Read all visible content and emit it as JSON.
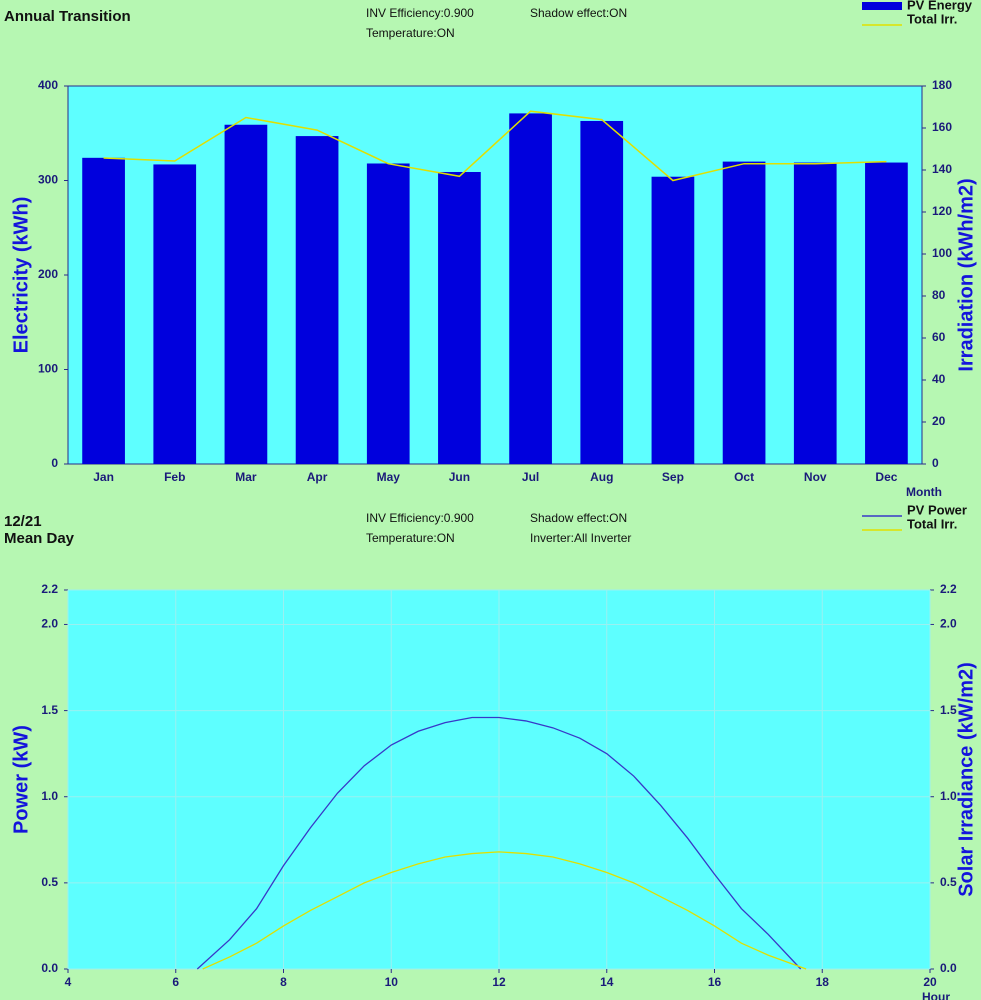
{
  "chart_data": [
    {
      "type": "bar",
      "title": "Annual Transition",
      "annotations": [
        "INV Efficiency:0.900",
        "Shadow effect:ON",
        "Temperature:ON"
      ],
      "xlabel": "Month",
      "ylabel": "Electricity (kWh)",
      "y2label": "Irradiation (kWh/m2)",
      "categories": [
        "Jan",
        "Feb",
        "Mar",
        "Apr",
        "May",
        "Jun",
        "Jul",
        "Aug",
        "Sep",
        "Oct",
        "Nov",
        "Dec"
      ],
      "series": [
        {
          "name": "PV Energy",
          "type": "bar",
          "color": "#0000dd",
          "values": [
            324,
            317,
            359,
            347,
            318,
            309,
            371,
            363,
            304,
            320,
            319,
            319
          ]
        },
        {
          "name": "Total Irr.",
          "type": "line",
          "axis": "y2",
          "color": "#e0e000",
          "values": [
            145.7,
            144.3,
            165,
            159,
            143,
            137,
            168,
            164,
            135,
            143,
            143,
            144
          ]
        }
      ],
      "ylim": [
        0,
        400
      ],
      "yticks": [
        0,
        100,
        200,
        300,
        400
      ],
      "y2lim": [
        0,
        180
      ],
      "y2ticks": [
        0,
        20,
        40,
        60,
        80,
        100,
        120,
        140,
        160,
        180
      ],
      "grid": false
    },
    {
      "type": "line",
      "date": "12/21",
      "title": "Mean Day",
      "annotations": [
        "INV Efficiency:0.900",
        "Shadow effect:ON",
        "Temperature:ON",
        "Inverter:All Inverter"
      ],
      "xlabel": "Hour",
      "ylabel": "Power (kW)",
      "y2label": "Solar Irradiance (kW/m2)",
      "series": [
        {
          "name": "PV Power",
          "color": "#3838c8",
          "x": [
            6.4,
            7,
            7.5,
            8,
            8.5,
            9,
            9.5,
            10,
            10.5,
            11,
            11.5,
            12,
            12.5,
            13,
            13.5,
            14,
            14.5,
            15,
            15.5,
            16,
            16.5,
            17,
            17.6
          ],
          "values": [
            0,
            0.17,
            0.35,
            0.6,
            0.82,
            1.02,
            1.18,
            1.3,
            1.38,
            1.43,
            1.46,
            1.46,
            1.44,
            1.4,
            1.34,
            1.25,
            1.12,
            0.95,
            0.76,
            0.55,
            0.35,
            0.2,
            0
          ]
        },
        {
          "name": "Total Irr.",
          "axis": "y2",
          "color": "#e0e000",
          "x": [
            6.5,
            7,
            7.5,
            8,
            8.5,
            9,
            9.5,
            10,
            10.5,
            11,
            11.5,
            12,
            12.5,
            13,
            13.5,
            14,
            14.5,
            15,
            15.5,
            16,
            16.5,
            17,
            17.7
          ],
          "values": [
            0,
            0.07,
            0.15,
            0.25,
            0.34,
            0.42,
            0.5,
            0.56,
            0.61,
            0.65,
            0.67,
            0.68,
            0.67,
            0.65,
            0.61,
            0.56,
            0.5,
            0.42,
            0.34,
            0.25,
            0.15,
            0.08,
            0
          ]
        }
      ],
      "xlim": [
        4,
        20
      ],
      "xticks": [
        4,
        6,
        8,
        10,
        12,
        14,
        16,
        18,
        20
      ],
      "ylim": [
        0,
        2.2
      ],
      "yticks": [
        {
          "value": 0,
          "label": "0.0"
        },
        0.5,
        {
          "value": 1,
          "label": "1.0"
        },
        1.5,
        {
          "value": 2,
          "label": "2.0"
        },
        2.2
      ],
      "y2lim": [
        0,
        2.2
      ],
      "y2ticks": [
        {
          "value": 0,
          "label": "0.0"
        },
        0.5,
        {
          "value": 1,
          "label": "1.0"
        },
        1.5,
        {
          "value": 2,
          "label": "2.0"
        },
        2.2
      ],
      "grid": true
    }
  ]
}
